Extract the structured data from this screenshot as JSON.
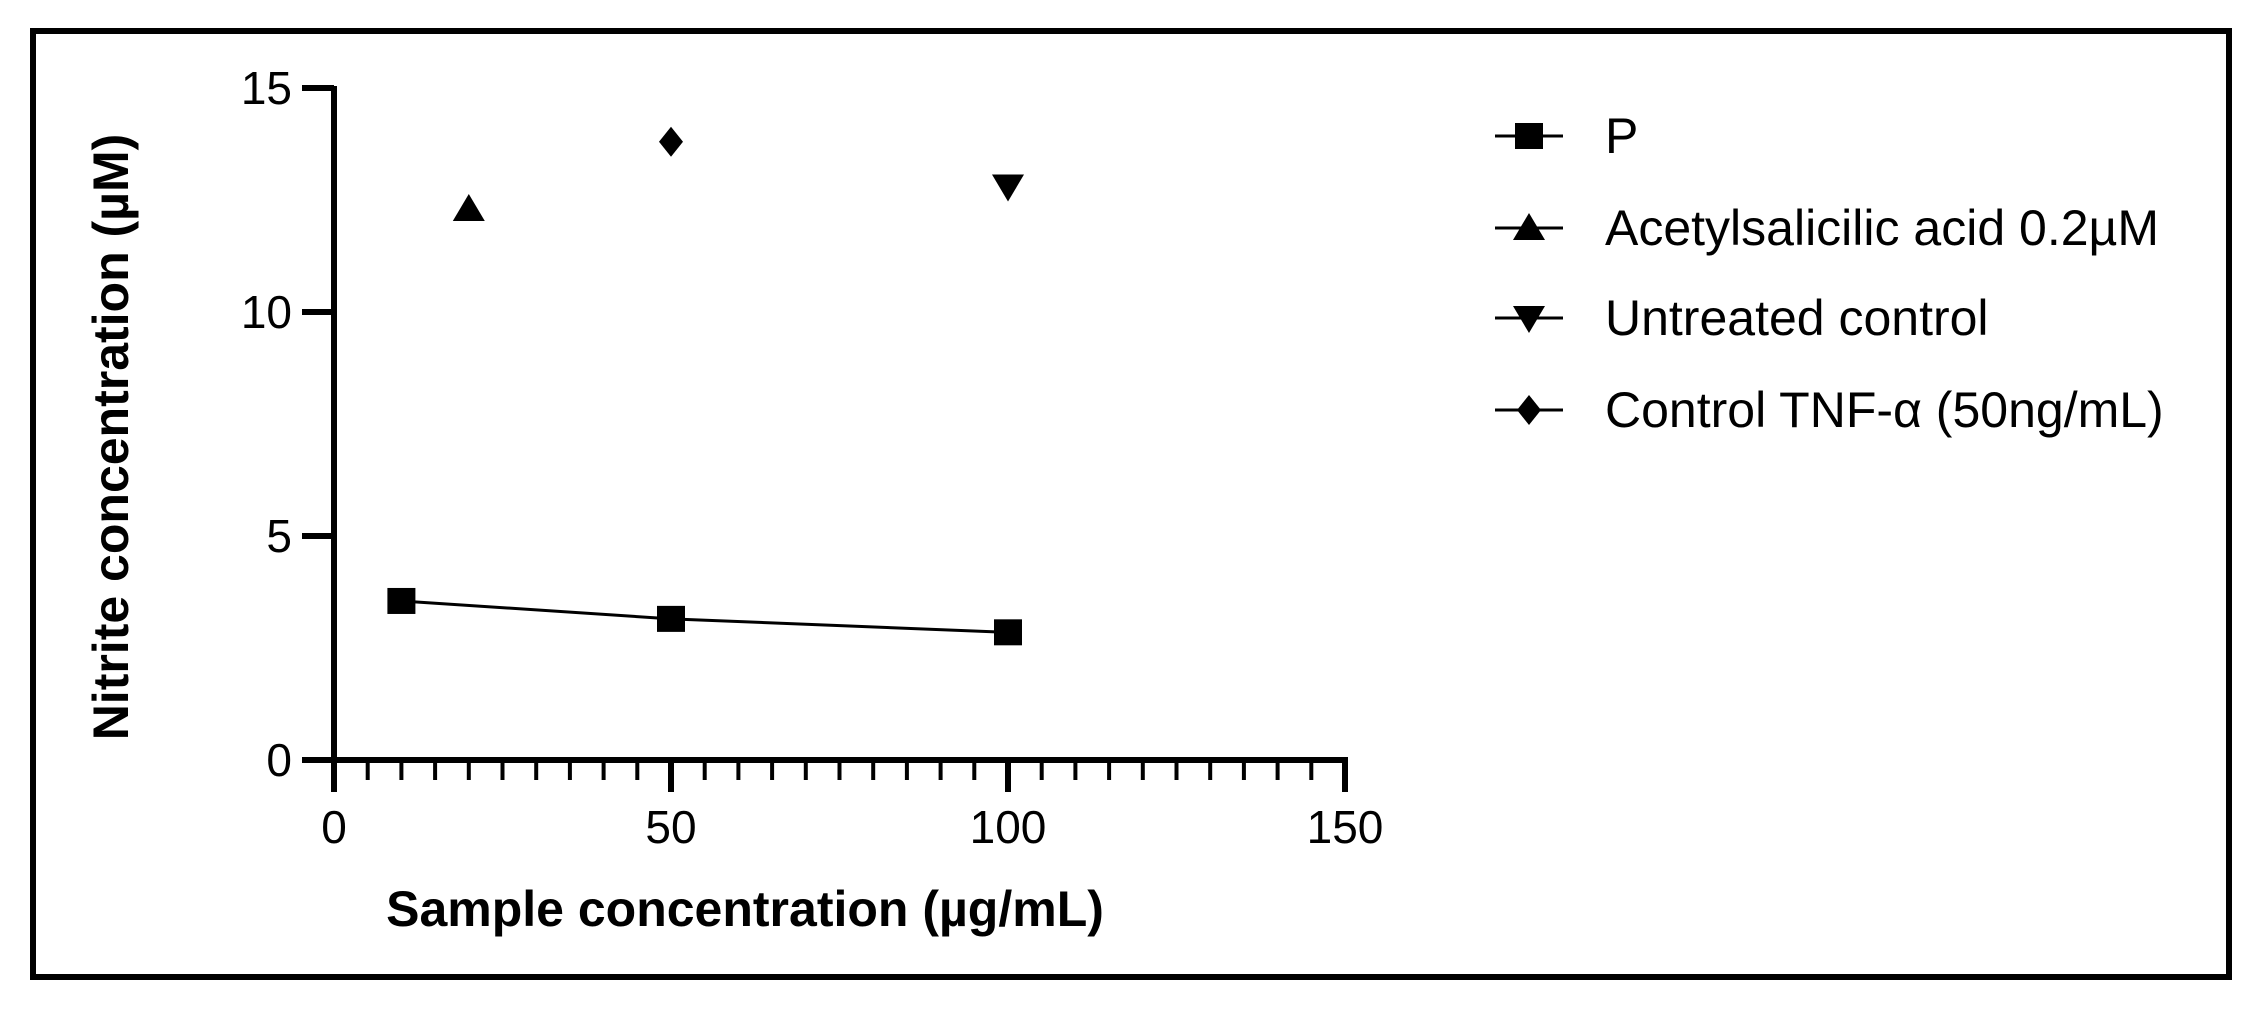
{
  "chart_data": {
    "type": "scatter",
    "xlabel": "Sample concentration (µg/mL)",
    "ylabel": "Nitrite concentration (µM)",
    "xlim": [
      0,
      150
    ],
    "ylim": [
      0,
      15
    ],
    "x_ticks": [
      0,
      50,
      100,
      150
    ],
    "x_tick_labels": [
      "0",
      "50",
      "100",
      "150"
    ],
    "y_ticks": [
      0,
      5,
      10,
      15
    ],
    "y_tick_labels": [
      "0",
      "5",
      "10",
      "15"
    ],
    "x_minor_step": 5,
    "grid": false,
    "legend_position": "right",
    "series": [
      {
        "name": "P",
        "marker": "square",
        "line": true,
        "x": [
          10,
          50,
          100
        ],
        "y": [
          3.55,
          3.15,
          2.85
        ]
      },
      {
        "name": "Acetylsalicilic acid 0.2µM",
        "marker": "triangle-up",
        "line": false,
        "x": [
          20
        ],
        "y": [
          12.3
        ]
      },
      {
        "name": "Untreated control",
        "marker": "triangle-down",
        "line": false,
        "x": [
          100
        ],
        "y": [
          12.8
        ]
      },
      {
        "name": "Control TNF-α (50ng/mL)",
        "marker": "diamond",
        "line": false,
        "x": [
          50
        ],
        "y": [
          13.8
        ]
      }
    ],
    "colors": {
      "marks": "#000000",
      "background": "#ffffff"
    }
  }
}
